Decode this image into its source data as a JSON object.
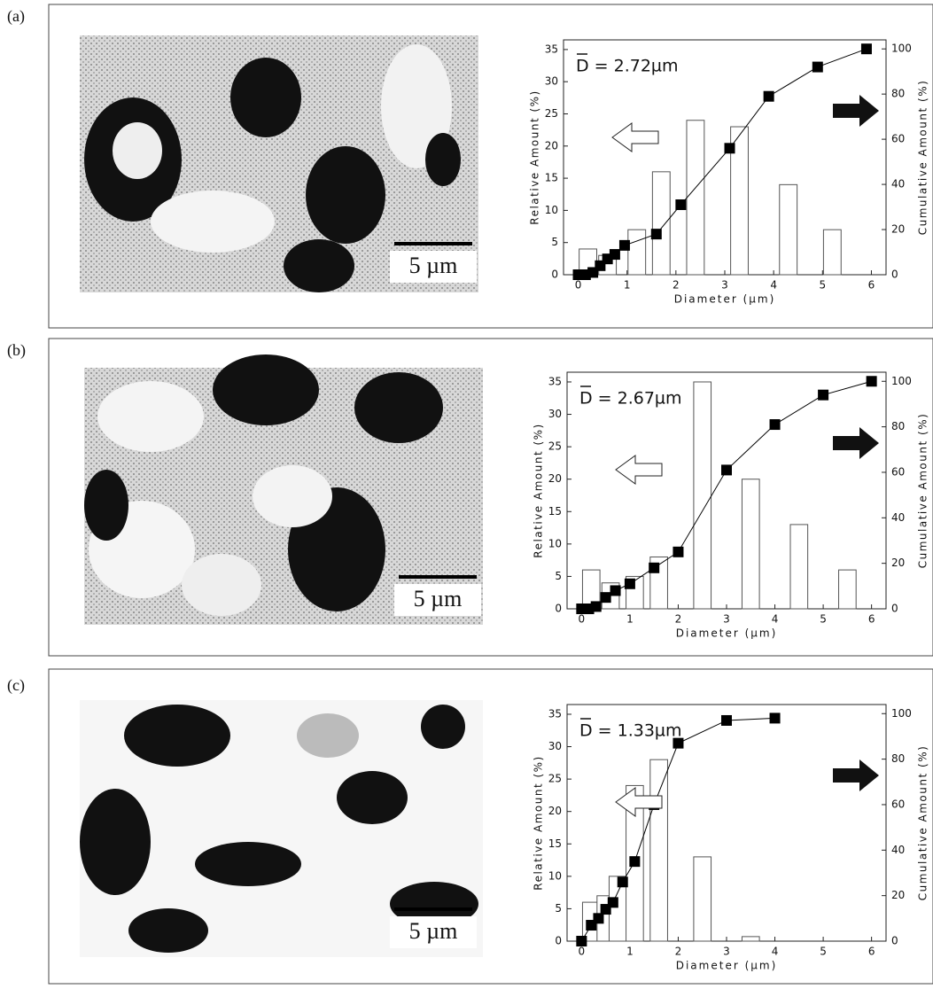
{
  "chart_data": [
    {
      "type": "bar",
      "panel_label": "(a)",
      "scale_bar_label": "5 µm",
      "annotation": "D = 2.72µm",
      "x_label": "Diameter (µm)",
      "y_label": "Relative Amount (%)",
      "y2_label": "Cumulative Amount (%)",
      "xlim": [
        -0.3,
        6.3
      ],
      "xticks": [
        0,
        1,
        2,
        3,
        4,
        5,
        6
      ],
      "ylim": [
        0,
        36.5
      ],
      "yticks": [
        0,
        5,
        10,
        15,
        20,
        25,
        30,
        35
      ],
      "y2lim": [
        0,
        104
      ],
      "y2ticks": [
        0,
        20,
        40,
        60,
        80,
        100
      ],
      "series": [
        {
          "type": "bar",
          "color": "#ffffff",
          "x": [
            0.2,
            0.6,
            1.2,
            1.7,
            2.4,
            3.3,
            4.3,
            5.2
          ],
          "values": [
            4,
            3,
            7,
            16,
            24,
            23,
            14,
            7
          ]
        },
        {
          "type": "line",
          "axis": "y2",
          "color": "#000000",
          "x": [
            0,
            0.15,
            0.3,
            0.45,
            0.6,
            0.75,
            0.95,
            1.6,
            2.1,
            3.1,
            3.9,
            4.9,
            5.9
          ],
          "values": [
            0,
            0,
            1,
            4,
            7,
            9,
            13,
            18,
            31,
            56,
            79,
            92,
            100
          ]
        }
      ]
    },
    {
      "type": "bar",
      "panel_label": "(b)",
      "scale_bar_label": "5 µm",
      "annotation": "D = 2.67µm",
      "x_label": "Diameter (µm)",
      "y_label": "Relative Amount (%)",
      "y2_label": "Cumulative Amount (%)",
      "xlim": [
        -0.3,
        6.3
      ],
      "xticks": [
        0,
        1,
        2,
        3,
        4,
        5,
        6
      ],
      "ylim": [
        0,
        36.5
      ],
      "yticks": [
        0,
        5,
        10,
        15,
        20,
        25,
        30,
        35
      ],
      "y2lim": [
        0,
        104
      ],
      "y2ticks": [
        0,
        20,
        40,
        60,
        80,
        100
      ],
      "series": [
        {
          "type": "bar",
          "color": "#ffffff",
          "x": [
            0.2,
            0.6,
            1.1,
            1.6,
            2.5,
            3.5,
            4.5,
            5.5
          ],
          "values": [
            6,
            4,
            5,
            8,
            35,
            20,
            13,
            6
          ]
        },
        {
          "type": "line",
          "axis": "y2",
          "color": "#000000",
          "x": [
            0,
            0.15,
            0.3,
            0.5,
            0.7,
            1,
            1.5,
            2,
            3,
            4,
            5,
            6
          ],
          "values": [
            0,
            0,
            1,
            5,
            8,
            11,
            18,
            25,
            61,
            81,
            94,
            100
          ]
        }
      ]
    },
    {
      "type": "bar",
      "panel_label": "(c)",
      "scale_bar_label": "5 µm",
      "annotation": "D = 1.33µm",
      "x_label": "Diameter (µm)",
      "y_label": "Relative Amount (%)",
      "y2_label": "Cumulative Amount (%)",
      "xlim": [
        -0.3,
        6.3
      ],
      "xticks": [
        0,
        1,
        2,
        3,
        4,
        5,
        6
      ],
      "ylim": [
        0,
        36.5
      ],
      "yticks": [
        0,
        5,
        10,
        15,
        20,
        25,
        30,
        35
      ],
      "y2lim": [
        0,
        104
      ],
      "y2ticks": [
        0,
        20,
        40,
        60,
        80,
        100
      ],
      "series": [
        {
          "type": "bar",
          "color": "#ffffff",
          "x": [
            0.2,
            0.5,
            0.75,
            1.1,
            1.6,
            2.5,
            3.5
          ],
          "values": [
            6,
            7,
            10,
            24,
            28,
            13,
            0.7
          ]
        },
        {
          "type": "line",
          "axis": "y2",
          "color": "#000000",
          "x": [
            0,
            0.2,
            0.35,
            0.5,
            0.65,
            0.85,
            1.1,
            1.5,
            2,
            3,
            4
          ],
          "values": [
            0,
            7,
            10,
            14,
            17,
            26,
            35,
            60,
            87,
            97,
            98
          ]
        }
      ]
    }
  ]
}
